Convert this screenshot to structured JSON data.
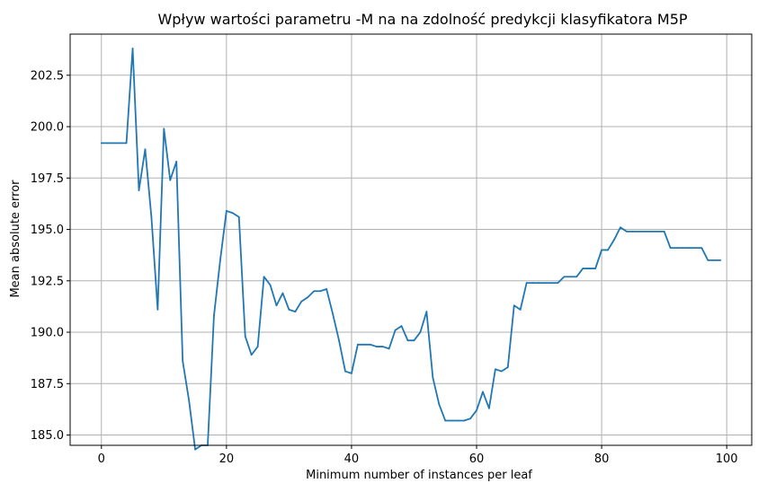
{
  "chart_data": {
    "type": "line",
    "title": "Wpływ wartości parametru -M na na zdolność predykcji klasyfikatora M5P",
    "xlabel": "Minimum number of instances per leaf",
    "ylabel": "Mean absolute error",
    "xlim": [
      -5,
      104
    ],
    "ylim": [
      184.5,
      204.5
    ],
    "xticks": [
      0,
      20,
      40,
      60,
      80,
      100
    ],
    "xtick_labels": [
      "0",
      "20",
      "40",
      "60",
      "80",
      "100"
    ],
    "yticks": [
      185.0,
      187.5,
      190.0,
      192.5,
      195.0,
      197.5,
      200.0,
      202.5
    ],
    "ytick_labels": [
      "185.0",
      "187.5",
      "190.0",
      "192.5",
      "195.0",
      "197.5",
      "200.0",
      "202.5"
    ],
    "grid": true,
    "color": "#1f77b4",
    "series": [
      {
        "x": [
          0,
          1,
          2,
          3,
          4,
          5,
          6,
          7,
          8,
          9,
          10,
          11,
          12,
          13,
          14,
          15,
          16,
          17,
          18,
          19,
          20,
          21,
          22,
          23,
          24,
          25,
          26,
          27,
          28,
          29,
          30,
          31,
          32,
          33,
          34,
          35,
          36,
          37,
          38,
          39,
          40,
          41,
          42,
          43,
          44,
          45,
          46,
          47,
          48,
          49,
          50,
          51,
          52,
          53,
          54,
          55,
          56,
          57,
          58,
          59,
          60,
          61,
          62,
          63,
          64,
          65,
          66,
          67,
          68,
          69,
          70,
          71,
          72,
          73,
          74,
          75,
          76,
          77,
          78,
          79,
          80,
          81,
          82,
          83,
          84,
          85,
          86,
          87,
          88,
          89,
          90,
          91,
          92,
          93,
          94,
          95,
          96,
          97,
          98,
          99
        ],
        "y": [
          199.2,
          199.2,
          199.2,
          199.2,
          199.2,
          203.8,
          196.9,
          198.9,
          195.6,
          191.1,
          199.9,
          197.4,
          198.3,
          188.6,
          186.7,
          184.3,
          184.5,
          184.5,
          190.8,
          193.5,
          195.9,
          195.8,
          195.6,
          189.8,
          188.9,
          189.3,
          192.7,
          192.3,
          191.3,
          191.9,
          191.1,
          191.0,
          191.5,
          191.7,
          192.0,
          192.0,
          192.1,
          190.9,
          189.6,
          188.1,
          188.0,
          189.4,
          189.4,
          189.4,
          189.3,
          189.3,
          189.2,
          190.1,
          190.3,
          189.6,
          189.6,
          190.0,
          191.0,
          187.8,
          186.5,
          185.7,
          185.7,
          185.7,
          185.7,
          185.8,
          186.2,
          187.1,
          186.3,
          188.2,
          188.1,
          188.3,
          191.3,
          191.1,
          192.4,
          192.4,
          192.4,
          192.4,
          192.4,
          192.4,
          192.7,
          192.7,
          192.7,
          193.1,
          193.1,
          193.1,
          194.0,
          194.0,
          194.5,
          195.1,
          194.9,
          194.9,
          194.9,
          194.9,
          194.9,
          194.9,
          194.9,
          194.1,
          194.1,
          194.1,
          194.1,
          194.1,
          194.1,
          193.5,
          193.5,
          193.5
        ]
      }
    ]
  }
}
